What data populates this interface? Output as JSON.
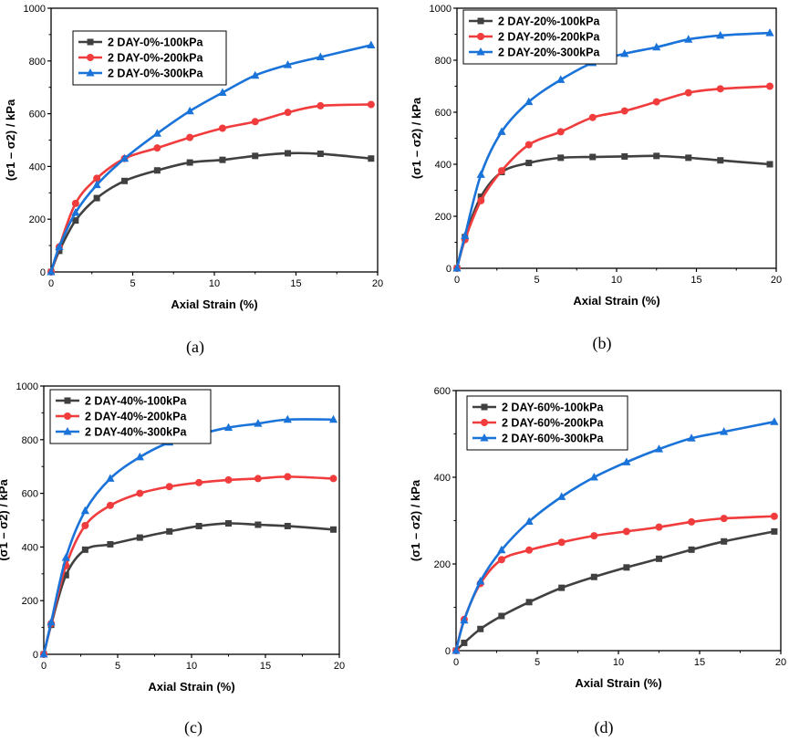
{
  "chart_data": [
    {
      "type": "line",
      "caption": "(a)",
      "xlabel": "Axial Strain (%)",
      "ylabel": "(σ1 – σ2) / kPa",
      "xlim": [
        0,
        20
      ],
      "ylim": [
        0,
        1000
      ],
      "xticks": [
        "0",
        "5",
        "10",
        "15",
        "20"
      ],
      "yticks": [
        "0",
        "200",
        "400",
        "600",
        "800",
        "1000"
      ],
      "legend_position": "upper-left",
      "series": [
        {
          "name": "2 DAY-0%-100kPa",
          "color": "#404040",
          "marker": "square",
          "x": [
            0,
            0.5,
            1.5,
            2.8,
            4.5,
            6.5,
            8.5,
            10.5,
            12.5,
            14.5,
            16.5,
            19.6
          ],
          "y": [
            0,
            80,
            195,
            280,
            345,
            385,
            415,
            425,
            440,
            450,
            448,
            430
          ]
        },
        {
          "name": "2 DAY-0%-200kPa",
          "color": "#f03c3c",
          "marker": "circle",
          "x": [
            0,
            0.5,
            1.5,
            2.8,
            4.5,
            6.5,
            8.5,
            10.5,
            12.5,
            14.5,
            16.5,
            19.6
          ],
          "y": [
            0,
            95,
            260,
            355,
            430,
            470,
            510,
            545,
            570,
            605,
            630,
            635
          ]
        },
        {
          "name": "2 DAY-0%-300kPa",
          "color": "#1a73d9",
          "marker": "triangle",
          "x": [
            0,
            0.5,
            1.5,
            2.8,
            4.5,
            6.5,
            8.5,
            10.5,
            12.5,
            14.5,
            16.5,
            19.6
          ],
          "y": [
            0,
            95,
            225,
            330,
            430,
            525,
            610,
            680,
            745,
            785,
            815,
            860
          ]
        }
      ]
    },
    {
      "type": "line",
      "caption": "(b)",
      "xlabel": "Axial Strain (%)",
      "ylabel": "(σ1 – σ2) / kPa",
      "xlim": [
        0,
        20
      ],
      "ylim": [
        0,
        1000
      ],
      "xticks": [
        "0",
        "5",
        "10",
        "15",
        "20"
      ],
      "yticks": [
        "0",
        "200",
        "400",
        "600",
        "800",
        "1000"
      ],
      "legend_position": "upper-left",
      "series": [
        {
          "name": "2 DAY-20%-100kPa",
          "color": "#404040",
          "marker": "square",
          "x": [
            0,
            0.5,
            1.5,
            2.8,
            4.5,
            6.5,
            8.5,
            10.5,
            12.5,
            14.5,
            16.5,
            19.6
          ],
          "y": [
            0,
            120,
            275,
            370,
            405,
            425,
            428,
            430,
            432,
            425,
            415,
            400
          ]
        },
        {
          "name": "2 DAY-20%-200kPa",
          "color": "#f03c3c",
          "marker": "circle",
          "x": [
            0,
            0.5,
            1.5,
            2.8,
            4.5,
            6.5,
            8.5,
            10.5,
            12.5,
            14.5,
            16.5,
            19.6
          ],
          "y": [
            0,
            110,
            260,
            375,
            475,
            525,
            580,
            605,
            640,
            675,
            690,
            700
          ]
        },
        {
          "name": "2 DAY-20%-300kPa",
          "color": "#1a73d9",
          "marker": "triangle",
          "x": [
            0,
            0.5,
            1.5,
            2.8,
            4.5,
            6.5,
            8.5,
            10.5,
            12.5,
            14.5,
            16.5,
            19.6
          ],
          "y": [
            0,
            125,
            360,
            525,
            640,
            725,
            790,
            825,
            850,
            880,
            895,
            905
          ]
        }
      ]
    },
    {
      "type": "line",
      "caption": "(c)",
      "xlabel": "Axial Strain (%)",
      "ylabel": "(σ1 – σ2) / kPa",
      "xlim": [
        0,
        20
      ],
      "ylim": [
        0,
        1000
      ],
      "xticks": [
        "0",
        "5",
        "10",
        "15",
        "20"
      ],
      "yticks": [
        "0",
        "200",
        "400",
        "600",
        "800",
        "1000"
      ],
      "legend_position": "upper-left",
      "series": [
        {
          "name": "2 DAY-40%-100kPa",
          "color": "#404040",
          "marker": "square",
          "x": [
            0,
            0.5,
            1.5,
            2.8,
            4.5,
            6.5,
            8.5,
            10.5,
            12.5,
            14.5,
            16.5,
            19.6
          ],
          "y": [
            0,
            110,
            295,
            390,
            410,
            435,
            458,
            478,
            488,
            483,
            478,
            465
          ]
        },
        {
          "name": "2 DAY-40%-200kPa",
          "color": "#f03c3c",
          "marker": "circle",
          "x": [
            0,
            0.5,
            1.5,
            2.8,
            4.5,
            6.5,
            8.5,
            10.5,
            12.5,
            14.5,
            16.5,
            19.6
          ],
          "y": [
            0,
            115,
            330,
            480,
            555,
            600,
            625,
            640,
            650,
            655,
            662,
            655
          ]
        },
        {
          "name": "2 DAY-40%-300kPa",
          "color": "#1a73d9",
          "marker": "triangle",
          "x": [
            0,
            0.5,
            1.5,
            2.8,
            4.5,
            6.5,
            8.5,
            10.5,
            12.5,
            14.5,
            16.5,
            19.6
          ],
          "y": [
            0,
            120,
            360,
            535,
            655,
            735,
            790,
            820,
            845,
            860,
            875,
            875
          ]
        }
      ]
    },
    {
      "type": "line",
      "caption": "(d)",
      "xlabel": "Axial Strain (%)",
      "ylabel": "(σ1 – σ2) / kPa",
      "xlim": [
        0,
        20
      ],
      "ylim": [
        0,
        600
      ],
      "xticks": [
        "0",
        "5",
        "10",
        "15",
        "20"
      ],
      "yticks": [
        "0",
        "200",
        "400",
        "600"
      ],
      "legend_position": "upper-left",
      "series": [
        {
          "name": "2 DAY-60%-100kPa",
          "color": "#404040",
          "marker": "square",
          "x": [
            0,
            0.5,
            1.5,
            2.8,
            4.5,
            6.5,
            8.5,
            10.5,
            12.5,
            14.5,
            16.5,
            19.6
          ],
          "y": [
            0,
            18,
            50,
            80,
            112,
            145,
            170,
            192,
            212,
            233,
            252,
            275
          ]
        },
        {
          "name": "2 DAY-60%-200kPa",
          "color": "#f03c3c",
          "marker": "circle",
          "x": [
            0,
            0.5,
            1.5,
            2.8,
            4.5,
            6.5,
            8.5,
            10.5,
            12.5,
            14.5,
            16.5,
            19.6
          ],
          "y": [
            0,
            72,
            155,
            210,
            232,
            250,
            265,
            275,
            285,
            297,
            305,
            310
          ]
        },
        {
          "name": "2 DAY-60%-300kPa",
          "color": "#1a73d9",
          "marker": "triangle",
          "x": [
            0,
            0.5,
            1.5,
            2.8,
            4.5,
            6.5,
            8.5,
            10.5,
            12.5,
            14.5,
            16.5,
            19.6
          ],
          "y": [
            0,
            70,
            160,
            232,
            298,
            355,
            400,
            435,
            465,
            490,
            505,
            528
          ]
        }
      ]
    }
  ]
}
